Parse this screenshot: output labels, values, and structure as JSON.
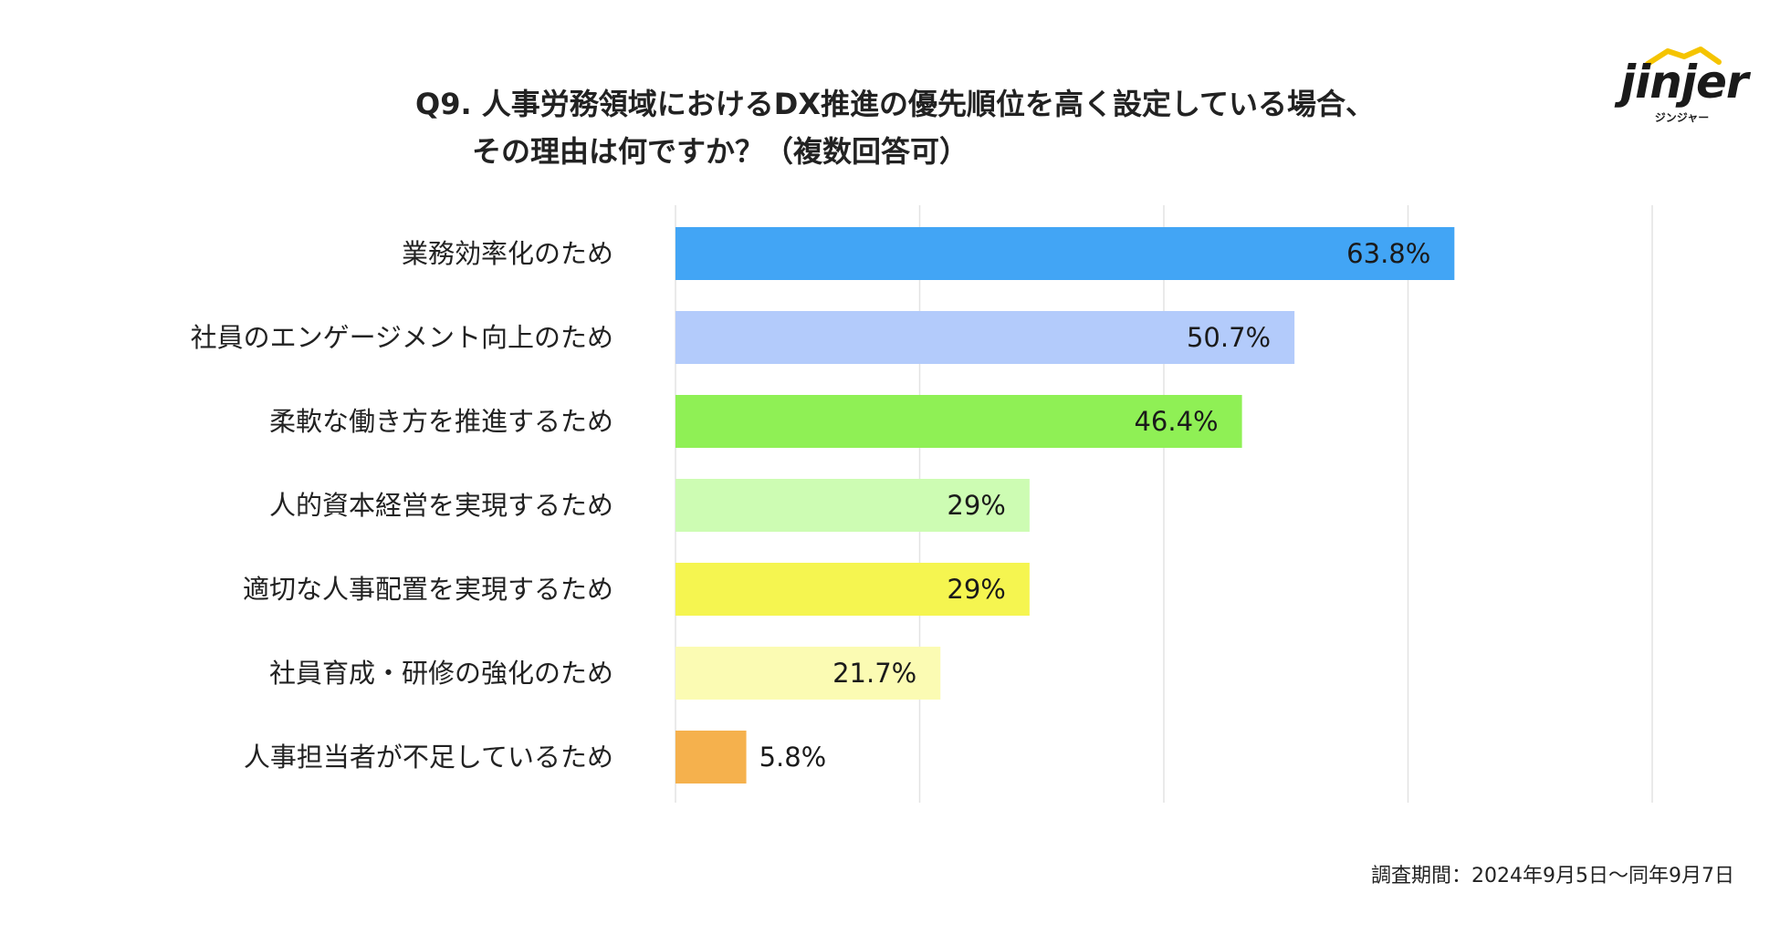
{
  "title_line1": "Q9. 人事労務領域におけるDX推進の優先順位を高く設定している場合、",
  "title_line2": "その理由は何ですか？（複数回答可）",
  "logo": {
    "word": "jinjer",
    "kana": "ジンジャー",
    "roof_color": "#f5c400"
  },
  "footer": "調査期間：2024年9月5日〜同年9月7日",
  "chart_data": {
    "type": "bar",
    "orientation": "horizontal",
    "categories": [
      "業務効率化のため",
      "社員のエンゲージメント向上のため",
      "柔軟な働き方を推進するため",
      "人的資本経営を実現するため",
      "適切な人事配置を実現するため",
      "社員育成・研修の強化のため",
      "人事担当者が不足しているため"
    ],
    "values": [
      63.8,
      50.7,
      46.4,
      29,
      29,
      21.7,
      5.8
    ],
    "labels": [
      "63.8%",
      "50.7%",
      "46.4%",
      "29%",
      "29%",
      "21.7%",
      "5.8%"
    ],
    "colors": [
      "#42a5f5",
      "#b3cbfb",
      "#8ff055",
      "#cdfcb3",
      "#f5f550",
      "#fbfbb3",
      "#f5b14d"
    ],
    "xlim": [
      0,
      80
    ],
    "gridlines": [
      0,
      20,
      40,
      60,
      80
    ],
    "grid": true
  }
}
